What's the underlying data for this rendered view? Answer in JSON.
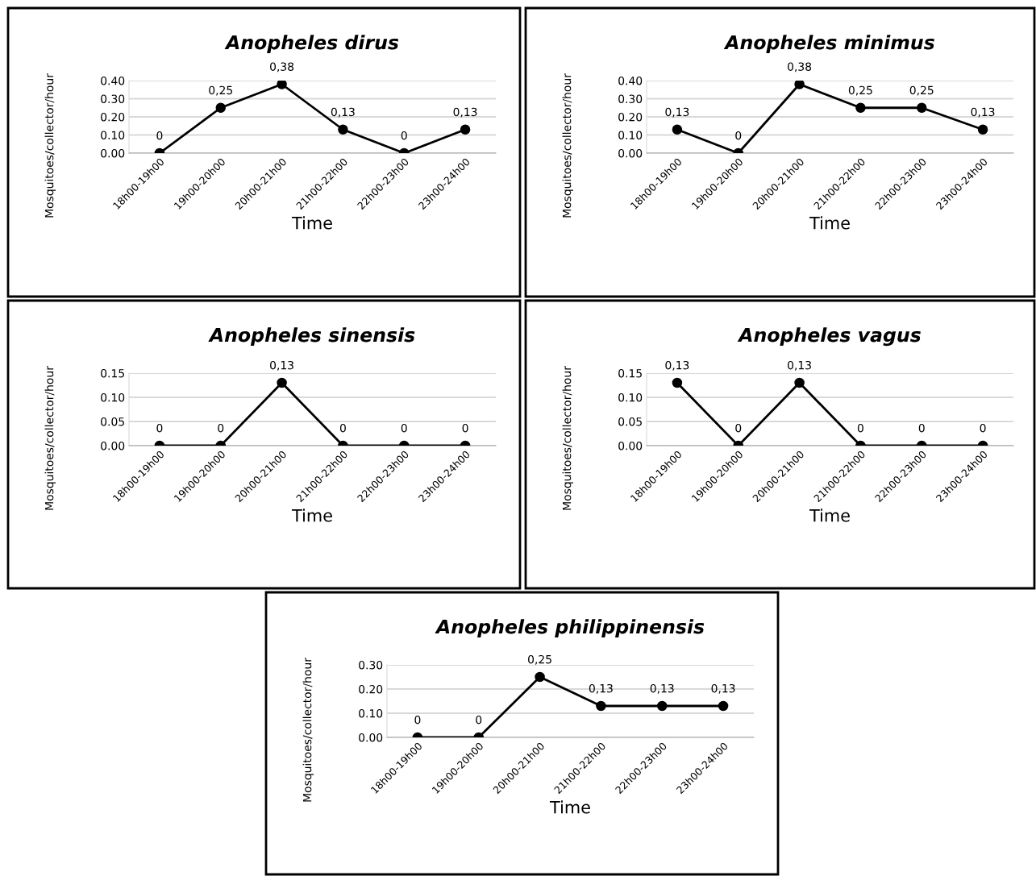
{
  "chart_data": [
    {
      "type": "line",
      "title": "Anopheles dirus",
      "xlabel": "Time",
      "ylabel": "Mosquitoes/collector/hour",
      "categories": [
        "18h00-19h00",
        "19h00-20h00",
        "20h00-21h00",
        "21h00-22h00",
        "22h00-23h00",
        "23h00-24h00"
      ],
      "values": [
        0,
        0.25,
        0.38,
        0.13,
        0,
        0.13
      ],
      "value_labels": [
        "0",
        "0,25",
        "0,38",
        "0,13",
        "0",
        "0,13"
      ],
      "color": "#000000",
      "marker": "circle",
      "grid": "y",
      "ylim": [
        0,
        0.4
      ],
      "yticks": [
        {
          "value": 0,
          "label": "0.00"
        },
        {
          "value": 0.1,
          "label": "0.10"
        },
        {
          "value": 0.2,
          "label": "0.20"
        },
        {
          "value": 0.3,
          "label": "0.30"
        },
        {
          "value": 0.4,
          "label": "0.40"
        }
      ]
    },
    {
      "type": "line",
      "title": "Anopheles minimus",
      "xlabel": "Time",
      "ylabel": "Mosquitoes/collector/hour",
      "categories": [
        "18h00-19h00",
        "19h00-20h00",
        "20h00-21h00",
        "21h00-22h00",
        "22h00-23h00",
        "23h00-24h00"
      ],
      "values": [
        0.13,
        0,
        0.38,
        0.25,
        0.25,
        0.13
      ],
      "value_labels": [
        "0,13",
        "0",
        "0,38",
        "0,25",
        "0,25",
        "0,13"
      ],
      "color": "#000000",
      "marker": "circle",
      "grid": "y",
      "ylim": [
        0,
        0.4
      ],
      "yticks": [
        {
          "value": 0,
          "label": "0.00"
        },
        {
          "value": 0.1,
          "label": "0.10"
        },
        {
          "value": 0.2,
          "label": "0.20"
        },
        {
          "value": 0.3,
          "label": "0.30"
        },
        {
          "value": 0.4,
          "label": "0.40"
        }
      ]
    },
    {
      "type": "line",
      "title": "Anopheles sinensis",
      "xlabel": "Time",
      "ylabel": "Mosquitoes/collector/hour",
      "categories": [
        "18h00-19h00",
        "19h00-20h00",
        "20h00-21h00",
        "21h00-22h00",
        "22h00-23h00",
        "23h00-24h00"
      ],
      "values": [
        0,
        0,
        0.13,
        0,
        0,
        0
      ],
      "value_labels": [
        "0",
        "0",
        "0,13",
        "0",
        "0",
        "0"
      ],
      "color": "#000000",
      "marker": "circle",
      "grid": "y",
      "ylim": [
        0,
        0.15
      ],
      "yticks": [
        {
          "value": 0,
          "label": "0.00"
        },
        {
          "value": 0.05,
          "label": "0.05"
        },
        {
          "value": 0.1,
          "label": "0.10"
        },
        {
          "value": 0.15,
          "label": "0.15"
        }
      ]
    },
    {
      "type": "line",
      "title": "Anopheles vagus",
      "xlabel": "Time",
      "ylabel": "Mosquitoes/collector/hour",
      "categories": [
        "18h00-19h00",
        "19h00-20h00",
        "20h00-21h00",
        "21h00-22h00",
        "22h00-23h00",
        "23h00-24h00"
      ],
      "values": [
        0.13,
        0,
        0.13,
        0,
        0,
        0
      ],
      "value_labels": [
        "0,13",
        "0",
        "0,13",
        "0",
        "0",
        "0"
      ],
      "color": "#000000",
      "marker": "circle",
      "grid": "y",
      "ylim": [
        0,
        0.15
      ],
      "yticks": [
        {
          "value": 0,
          "label": "0.00"
        },
        {
          "value": 0.05,
          "label": "0.05"
        },
        {
          "value": 0.1,
          "label": "0.10"
        },
        {
          "value": 0.15,
          "label": "0.15"
        }
      ]
    },
    {
      "type": "line",
      "title": "Anopheles philippinensis",
      "xlabel": "Time",
      "ylabel": "Mosquitoes/collector/hour",
      "categories": [
        "18h00-19h00",
        "19h00-20h00",
        "20h00-21h00",
        "21h00-22h00",
        "22h00-23h00",
        "23h00-24h00"
      ],
      "values": [
        0,
        0,
        0.25,
        0.13,
        0.13,
        0.13
      ],
      "value_labels": [
        "0",
        "0",
        "0,25",
        "0,13",
        "0,13",
        "0,13"
      ],
      "color": "#000000",
      "marker": "circle",
      "grid": "y",
      "ylim": [
        0,
        0.3
      ],
      "yticks": [
        {
          "value": 0,
          "label": "0.00"
        },
        {
          "value": 0.1,
          "label": "0.10"
        },
        {
          "value": 0.2,
          "label": "0.20"
        },
        {
          "value": 0.3,
          "label": "0.30"
        }
      ]
    }
  ]
}
